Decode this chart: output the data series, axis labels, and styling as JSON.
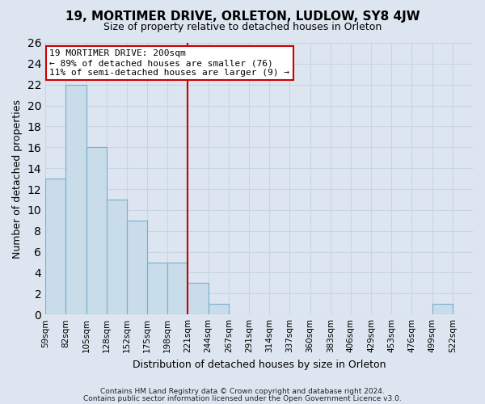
{
  "title": "19, MORTIMER DRIVE, ORLETON, LUDLOW, SY8 4JW",
  "subtitle": "Size of property relative to detached houses in Orleton",
  "xlabel": "Distribution of detached houses by size in Orleton",
  "ylabel": "Number of detached properties",
  "bin_labels": [
    "59sqm",
    "82sqm",
    "105sqm",
    "128sqm",
    "152sqm",
    "175sqm",
    "198sqm",
    "221sqm",
    "244sqm",
    "267sqm",
    "291sqm",
    "314sqm",
    "337sqm",
    "360sqm",
    "383sqm",
    "406sqm",
    "429sqm",
    "453sqm",
    "476sqm",
    "499sqm",
    "522sqm"
  ],
  "bar_values": [
    13,
    22,
    16,
    11,
    9,
    5,
    5,
    3,
    1,
    0,
    0,
    0,
    0,
    0,
    0,
    0,
    0,
    0,
    0,
    1,
    0
  ],
  "bar_color": "#c8dcea",
  "bar_edge_color": "#7aadcc",
  "vline_x_index": 6,
  "vline_color": "#cc0000",
  "ylim": [
    0,
    26
  ],
  "yticks": [
    0,
    2,
    4,
    6,
    8,
    10,
    12,
    14,
    16,
    18,
    20,
    22,
    24,
    26
  ],
  "annotation_title": "19 MORTIMER DRIVE: 200sqm",
  "annotation_line1": "← 89% of detached houses are smaller (76)",
  "annotation_line2": "11% of semi-detached houses are larger (9) →",
  "annotation_box_color": "#ffffff",
  "annotation_box_edge": "#cc0000",
  "footnote1": "Contains HM Land Registry data © Crown copyright and database right 2024.",
  "footnote2": "Contains public sector information licensed under the Open Government Licence v3.0.",
  "grid_color": "#c8d4e4",
  "background_color": "#dde6f0",
  "axes_background": "#dde6f0",
  "title_fontsize": 11,
  "subtitle_fontsize": 9
}
